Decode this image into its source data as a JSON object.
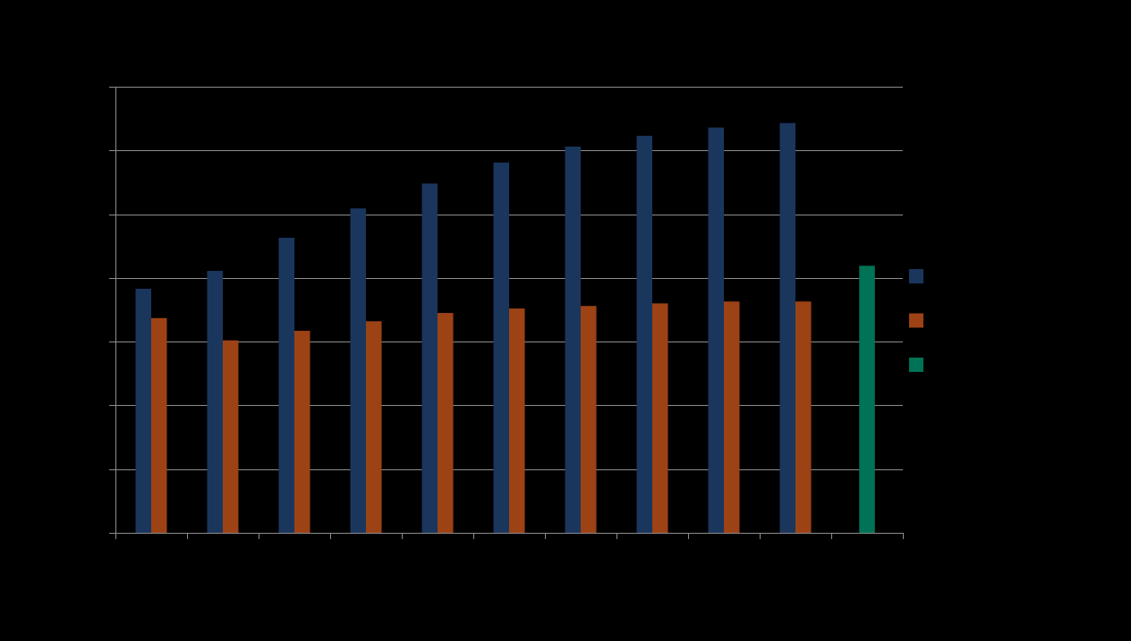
{
  "chart_data": {
    "type": "bar",
    "categories": [
      "",
      "",
      "",
      "",
      "",
      "",
      "",
      "",
      "",
      "",
      ""
    ],
    "ylim": [
      0,
      7
    ],
    "grid": true,
    "legend_position": "right",
    "series": [
      {
        "color": "#1b365d",
        "values": [
          3.83,
          4.11,
          4.63,
          5.09,
          5.48,
          5.81,
          6.06,
          6.23,
          6.36,
          6.43,
          null
        ]
      },
      {
        "color": "#9c4215",
        "values": [
          3.37,
          3.02,
          3.17,
          3.32,
          3.45,
          3.52,
          3.56,
          3.6,
          3.63,
          3.63,
          null
        ]
      },
      {
        "color": "#007356",
        "values": [
          null,
          null,
          null,
          null,
          null,
          null,
          null,
          null,
          null,
          null,
          4.19
        ]
      }
    ]
  }
}
